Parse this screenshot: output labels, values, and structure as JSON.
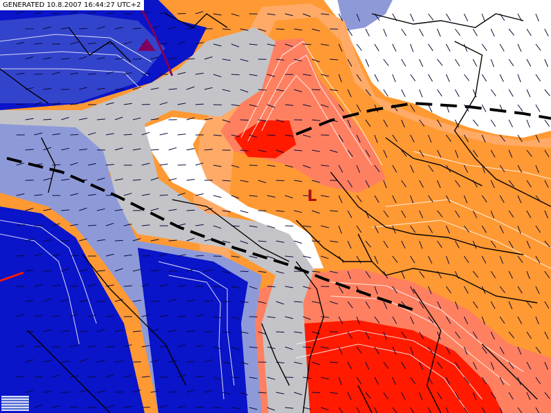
{
  "header": {
    "generated_label": "GENERATED 10.8.2007 16:44:27 UTC+2"
  },
  "map": {
    "low_label": "L",
    "colors": {
      "deep_blue": "#0a14c8",
      "mid_blue": "#3344cc",
      "pale_blue": "#8e9ad8",
      "gray_band": "#c4c4c8",
      "orange": "#ff9933",
      "light_orange": "#ffaa66",
      "salmon": "#ff8060",
      "red": "#ff1a00",
      "contour_white": "#ffffff",
      "border_black": "#000000",
      "front_purple": "#800060",
      "trough_black": "#000000"
    },
    "icons": [
      "cold-front-triangle-icon",
      "wind-barb-icon"
    ]
  }
}
